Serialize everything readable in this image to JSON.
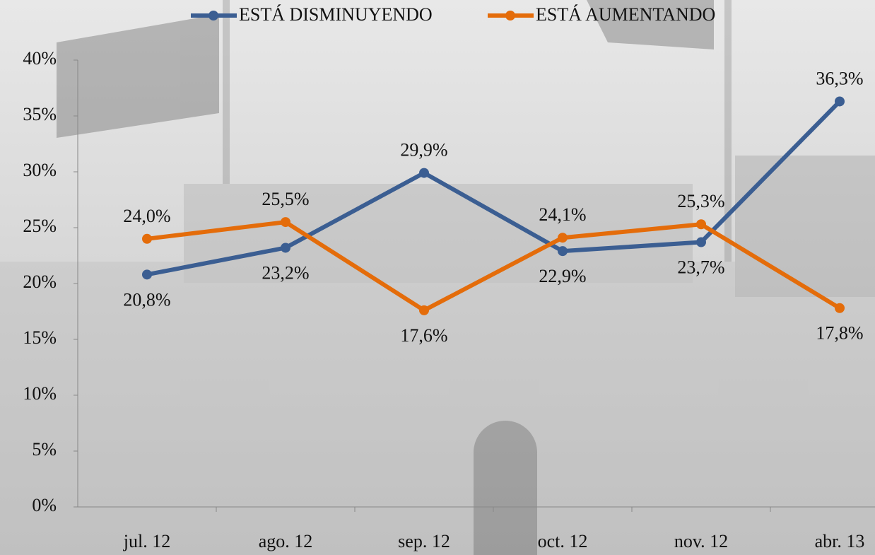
{
  "chart_data": {
    "type": "line",
    "categories": [
      "jul. 12",
      "ago. 12",
      "sep. 12",
      "oct. 12",
      "nov. 12",
      "abr. 13"
    ],
    "series": [
      {
        "name": "ESTÁ DISMINUYENDO",
        "color": "#3b5e92",
        "values": [
          20.8,
          23.2,
          29.9,
          22.9,
          23.7,
          36.3
        ],
        "value_labels": [
          "20,8%",
          "23,2%",
          "29,9%",
          "22,9%",
          "23,7%",
          "36,3%"
        ]
      },
      {
        "name": "ESTÁ AUMENTANDO",
        "color": "#e46c0a",
        "values": [
          24.0,
          25.5,
          17.6,
          24.1,
          25.3,
          17.8
        ],
        "value_labels": [
          "24,0%",
          "25,5%",
          "17,6%",
          "24,1%",
          "25,3%",
          "17,8%"
        ]
      }
    ],
    "ylim": [
      0,
      40
    ],
    "yticks": [
      {
        "value": 0,
        "label": "0%"
      },
      {
        "value": 5,
        "label": "5%"
      },
      {
        "value": 10,
        "label": "10%"
      },
      {
        "value": 15,
        "label": "15%"
      },
      {
        "value": 20,
        "label": "20%"
      },
      {
        "value": 25,
        "label": "25%"
      },
      {
        "value": 30,
        "label": "30%"
      },
      {
        "value": 35,
        "label": "35%"
      },
      {
        "value": 40,
        "label": "40%"
      }
    ],
    "legend": "top"
  }
}
